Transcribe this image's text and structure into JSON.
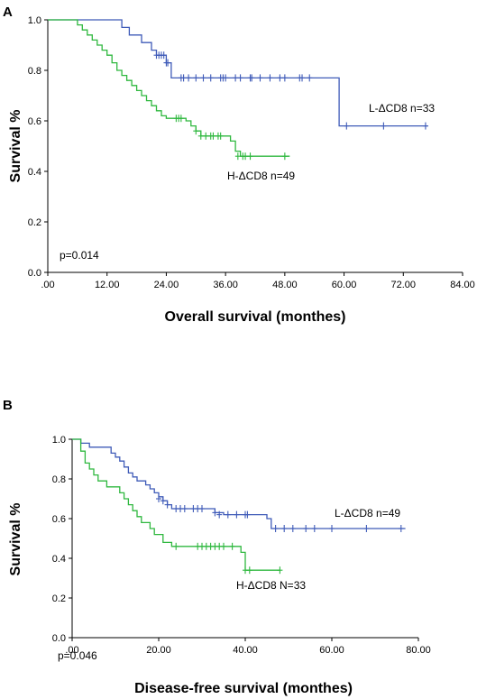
{
  "colors": {
    "L": "#3f5bb8",
    "H": "#2fb83f",
    "axis": "#000000"
  },
  "chart_data": [
    {
      "type": "line",
      "panel": "A",
      "xlabel": "Overall survival (monthes)",
      "ylabel": "Survival %",
      "xlim": [
        0,
        84
      ],
      "ylim": [
        0,
        1
      ],
      "x_ticks": [
        ".00",
        "12.00",
        "24.00",
        "36.00",
        "48.00",
        "60.00",
        "72.00",
        "84.00"
      ],
      "y_ticks": [
        "0.0",
        "0.2",
        "0.4",
        "0.6",
        "0.8",
        "1.0"
      ],
      "annotation": "p=0.014",
      "grid": false,
      "series": [
        {
          "name": "L-ΔCD8 n=33",
          "key": "L",
          "steps": [
            [
              0,
              1.0
            ],
            [
              15,
              0.97
            ],
            [
              16.5,
              0.94
            ],
            [
              19,
              0.91
            ],
            [
              21,
              0.88
            ],
            [
              22,
              0.86
            ],
            [
              24,
              0.83
            ],
            [
              25,
              0.77
            ],
            [
              59,
              0.77
            ],
            [
              59,
              0.58
            ],
            [
              77,
              0.58
            ]
          ],
          "censors": [
            [
              22,
              0.86
            ],
            [
              22.5,
              0.86
            ],
            [
              23,
              0.86
            ],
            [
              23.5,
              0.86
            ],
            [
              24,
              0.83
            ],
            [
              24.3,
              0.83
            ],
            [
              27,
              0.77
            ],
            [
              27.5,
              0.77
            ],
            [
              28.5,
              0.77
            ],
            [
              30,
              0.77
            ],
            [
              31.5,
              0.77
            ],
            [
              33,
              0.77
            ],
            [
              35,
              0.77
            ],
            [
              35.5,
              0.77
            ],
            [
              36,
              0.77
            ],
            [
              38,
              0.77
            ],
            [
              39,
              0.77
            ],
            [
              41,
              0.77
            ],
            [
              41.3,
              0.77
            ],
            [
              43,
              0.77
            ],
            [
              45,
              0.77
            ],
            [
              47,
              0.77
            ],
            [
              48,
              0.77
            ],
            [
              51,
              0.77
            ],
            [
              51.5,
              0.77
            ],
            [
              53,
              0.77
            ],
            [
              60.5,
              0.58
            ],
            [
              68,
              0.58
            ],
            [
              76.5,
              0.58
            ]
          ]
        },
        {
          "name": "H-ΔCD8 n=49",
          "key": "H",
          "steps": [
            [
              0,
              1.0
            ],
            [
              6,
              0.98
            ],
            [
              7,
              0.96
            ],
            [
              8,
              0.94
            ],
            [
              9,
              0.92
            ],
            [
              10,
              0.9
            ],
            [
              11,
              0.88
            ],
            [
              12,
              0.86
            ],
            [
              13,
              0.83
            ],
            [
              14,
              0.8
            ],
            [
              15,
              0.78
            ],
            [
              16,
              0.76
            ],
            [
              17,
              0.74
            ],
            [
              18,
              0.72
            ],
            [
              19,
              0.7
            ],
            [
              20,
              0.68
            ],
            [
              21,
              0.66
            ],
            [
              22,
              0.64
            ],
            [
              23,
              0.62
            ],
            [
              24,
              0.61
            ],
            [
              28,
              0.6
            ],
            [
              29,
              0.58
            ],
            [
              30,
              0.56
            ],
            [
              31,
              0.54
            ],
            [
              37,
              0.52
            ],
            [
              38,
              0.48
            ],
            [
              39,
              0.46
            ],
            [
              49,
              0.46
            ]
          ],
          "censors": [
            [
              26,
              0.61
            ],
            [
              26.5,
              0.61
            ],
            [
              27,
              0.61
            ],
            [
              30,
              0.56
            ],
            [
              31,
              0.54
            ],
            [
              32,
              0.54
            ],
            [
              33,
              0.54
            ],
            [
              33.5,
              0.54
            ],
            [
              34.5,
              0.54
            ],
            [
              35,
              0.54
            ],
            [
              38.5,
              0.46
            ],
            [
              39.5,
              0.46
            ],
            [
              40,
              0.46
            ],
            [
              41,
              0.46
            ],
            [
              48,
              0.46
            ]
          ]
        }
      ]
    },
    {
      "type": "line",
      "panel": "B",
      "xlabel": "Disease-free survival (monthes)",
      "ylabel": "Survival %",
      "xlim": [
        0,
        80
      ],
      "ylim": [
        0,
        1
      ],
      "x_ticks": [
        ".00",
        "20.00",
        "40.00",
        "60.00",
        "80.00"
      ],
      "y_ticks": [
        "0.0",
        "0.2",
        "0.4",
        "0.6",
        "0.8",
        "1.0"
      ],
      "annotation": "p=0.046",
      "grid": false,
      "series": [
        {
          "name": "L-ΔCD8  n=49",
          "key": "L",
          "steps": [
            [
              0,
              1.0
            ],
            [
              2,
              0.98
            ],
            [
              4,
              0.96
            ],
            [
              9,
              0.93
            ],
            [
              10,
              0.91
            ],
            [
              11,
              0.89
            ],
            [
              12,
              0.86
            ],
            [
              13,
              0.83
            ],
            [
              14,
              0.81
            ],
            [
              15,
              0.79
            ],
            [
              17,
              0.77
            ],
            [
              18,
              0.75
            ],
            [
              19,
              0.73
            ],
            [
              20,
              0.71
            ],
            [
              21,
              0.69
            ],
            [
              22,
              0.67
            ],
            [
              23,
              0.65
            ],
            [
              33,
              0.63
            ],
            [
              35,
              0.62
            ],
            [
              45,
              0.6
            ],
            [
              46,
              0.55
            ],
            [
              77,
              0.55
            ]
          ],
          "censors": [
            [
              20,
              0.7
            ],
            [
              21,
              0.69
            ],
            [
              22,
              0.67
            ],
            [
              24,
              0.65
            ],
            [
              25,
              0.65
            ],
            [
              26,
              0.65
            ],
            [
              28,
              0.65
            ],
            [
              29,
              0.65
            ],
            [
              30,
              0.65
            ],
            [
              33,
              0.63
            ],
            [
              34,
              0.62
            ],
            [
              36,
              0.62
            ],
            [
              38,
              0.62
            ],
            [
              40,
              0.62
            ],
            [
              40.5,
              0.62
            ],
            [
              47,
              0.55
            ],
            [
              49,
              0.55
            ],
            [
              51,
              0.55
            ],
            [
              54,
              0.55
            ],
            [
              56,
              0.55
            ],
            [
              60,
              0.55
            ],
            [
              68,
              0.55
            ],
            [
              76,
              0.55
            ]
          ]
        },
        {
          "name": "H-ΔCD8 N=33",
          "key": "H",
          "steps": [
            [
              0,
              1.0
            ],
            [
              2,
              0.94
            ],
            [
              3,
              0.88
            ],
            [
              4,
              0.85
            ],
            [
              5,
              0.82
            ],
            [
              6,
              0.79
            ],
            [
              8,
              0.76
            ],
            [
              11,
              0.73
            ],
            [
              12,
              0.7
            ],
            [
              13,
              0.67
            ],
            [
              14,
              0.64
            ],
            [
              15,
              0.61
            ],
            [
              16,
              0.58
            ],
            [
              18,
              0.55
            ],
            [
              19,
              0.52
            ],
            [
              21,
              0.48
            ],
            [
              23,
              0.46
            ],
            [
              39,
              0.43
            ],
            [
              40,
              0.34
            ],
            [
              48,
              0.34
            ]
          ],
          "censors": [
            [
              24,
              0.46
            ],
            [
              29,
              0.46
            ],
            [
              30,
              0.46
            ],
            [
              31,
              0.46
            ],
            [
              32,
              0.46
            ],
            [
              33,
              0.46
            ],
            [
              34,
              0.46
            ],
            [
              35,
              0.46
            ],
            [
              37,
              0.46
            ],
            [
              40,
              0.34
            ],
            [
              41,
              0.34
            ],
            [
              48,
              0.34
            ]
          ]
        }
      ]
    }
  ]
}
